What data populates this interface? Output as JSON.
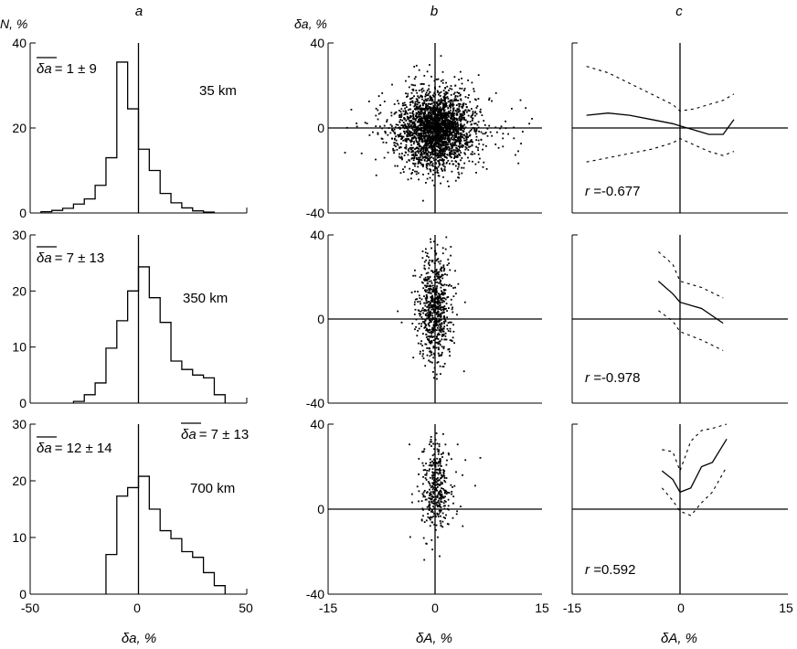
{
  "figure": {
    "panel_letters": [
      "a",
      "b",
      "c"
    ],
    "y_unit_a": "N, %",
    "y_unit_b": "δa, %",
    "x_label_a": "δa, %",
    "x_label_b": "δA, %",
    "x_label_c": "δA, %",
    "x_ticks_a": [
      "-50",
      "0",
      "50"
    ],
    "x_ticks_bc": [
      "-15",
      "0",
      "15"
    ]
  },
  "chart_data": [
    {
      "type": "bar",
      "panel": "a",
      "row": 1,
      "annotation": "35 km",
      "stat_symbol": "δa",
      "stat_value": "= 1 ± 9",
      "xlim": [
        -50,
        50
      ],
      "ylim": [
        0,
        40
      ],
      "yticks": [
        "40",
        "20",
        "0"
      ],
      "bin_width": 5,
      "bin_edges": [
        -45,
        -40,
        -35,
        -30,
        -25,
        -20,
        -15,
        -10,
        -5,
        0,
        5,
        10,
        15,
        20,
        25,
        30,
        35
      ],
      "values": [
        0.3,
        0.6,
        1.1,
        2.1,
        3.3,
        6.5,
        13,
        35.5,
        24.5,
        15,
        10,
        4.6,
        2.4,
        1.2,
        0.5,
        0.2
      ]
    },
    {
      "type": "scatter",
      "panel": "b",
      "row": 1,
      "xlim": [
        -15,
        15
      ],
      "ylim": [
        -40,
        40
      ],
      "yticks": [
        "40",
        "0",
        "-40"
      ],
      "cloud": {
        "n": 2600,
        "x_center": 0,
        "y_center": 0,
        "x_spread": 2.4,
        "y_spread": 9
      }
    },
    {
      "type": "line",
      "panel": "c",
      "row": 1,
      "xlim": [
        -15,
        15
      ],
      "ylim": [
        -40,
        40
      ],
      "r_label": "r =",
      "r_value": "-0.677",
      "series": [
        {
          "style": "solid",
          "x": [
            -13,
            -10,
            -7,
            -4,
            -1,
            0,
            2,
            4,
            6,
            7.5
          ],
          "y": [
            6,
            7,
            6,
            4,
            2,
            1,
            -1,
            -3,
            -3,
            4
          ]
        },
        {
          "style": "dashed",
          "x": [
            -13,
            -10,
            -7,
            -4,
            -1,
            0,
            2,
            4,
            6,
            7.5
          ],
          "y": [
            29,
            26,
            21,
            16,
            11,
            8,
            9,
            11,
            13,
            16
          ]
        },
        {
          "style": "dashed",
          "x": [
            -13,
            -10,
            -7,
            -4,
            -1,
            0,
            2,
            4,
            6,
            7.5
          ],
          "y": [
            -16,
            -14,
            -12,
            -10,
            -7,
            -5,
            -8,
            -11,
            -13,
            -11
          ]
        }
      ]
    },
    {
      "type": "bar",
      "panel": "a",
      "row": 2,
      "annotation": "350 km",
      "stat_symbol": "δa",
      "stat_value": "= 7 ± 13",
      "xlim": [
        -50,
        50
      ],
      "ylim": [
        0,
        30
      ],
      "yticks": [
        "30",
        "20",
        "10",
        "0"
      ],
      "bin_width": 5,
      "bin_edges": [
        -30,
        -25,
        -20,
        -15,
        -10,
        -5,
        0,
        5,
        10,
        15,
        20,
        25,
        30,
        35,
        40
      ],
      "values": [
        0.3,
        1.5,
        3.6,
        9.8,
        14.7,
        20,
        24.3,
        18.8,
        14.4,
        7.5,
        6,
        5,
        4.5,
        1.5
      ]
    },
    {
      "type": "scatter",
      "panel": "b",
      "row": 2,
      "xlim": [
        -15,
        15
      ],
      "ylim": [
        -40,
        40
      ],
      "yticks": [
        "40",
        "0",
        "-40"
      ],
      "cloud": {
        "n": 700,
        "x_center": -0.2,
        "y_center": 5,
        "x_spread": 1.0,
        "y_spread": 12
      }
    },
    {
      "type": "line",
      "panel": "c",
      "row": 2,
      "xlim": [
        -15,
        15
      ],
      "ylim": [
        -40,
        40
      ],
      "r_label": "r =",
      "r_value": "-0.978",
      "series": [
        {
          "style": "solid",
          "x": [
            -3,
            -1,
            0,
            3,
            6
          ],
          "y": [
            18,
            12,
            8,
            5,
            -2
          ]
        },
        {
          "style": "dashed",
          "x": [
            -3,
            -1,
            0,
            3,
            6
          ],
          "y": [
            32,
            26,
            18,
            15,
            10
          ]
        },
        {
          "style": "dashed",
          "x": [
            -3,
            -1,
            0,
            3,
            6
          ],
          "y": [
            4,
            -1,
            -6,
            -10,
            -15
          ]
        }
      ]
    },
    {
      "type": "bar",
      "panel": "a",
      "row": 3,
      "annotation": "700 km",
      "stat_symbol": "δa",
      "stat_value": "= 12 ± 14",
      "stat2_symbol": "δa",
      "stat2_value": "= 7 ± 13",
      "xlim": [
        -50,
        50
      ],
      "ylim": [
        0,
        30
      ],
      "yticks": [
        "30",
        "20",
        "10",
        "0"
      ],
      "bin_width": 5,
      "bin_edges": [
        -15,
        -10,
        -5,
        0,
        5,
        10,
        15,
        20,
        25,
        30,
        35,
        40
      ],
      "values": [
        7,
        17.3,
        18.8,
        20.8,
        15,
        11.2,
        9.8,
        7.5,
        6.5,
        3.8,
        1.5
      ]
    },
    {
      "type": "scatter",
      "panel": "b",
      "row": 3,
      "xlim": [
        -15,
        15
      ],
      "ylim": [
        -40,
        40
      ],
      "yticks": [
        "40",
        "0",
        "-40"
      ],
      "cloud": {
        "n": 380,
        "x_center": 0,
        "y_center": 10,
        "x_spread": 1.0,
        "y_spread": 12
      }
    },
    {
      "type": "line",
      "panel": "c",
      "row": 3,
      "xlim": [
        -15,
        15
      ],
      "ylim": [
        -40,
        40
      ],
      "r_label": "r =",
      "r_value": "0.592",
      "series": [
        {
          "style": "solid",
          "x": [
            -2.5,
            -1,
            0,
            1.5,
            3,
            4.5,
            6.5
          ],
          "y": [
            18,
            14,
            8,
            10,
            20,
            22,
            33
          ]
        },
        {
          "style": "dashed",
          "x": [
            -2.5,
            -1,
            0,
            1.5,
            3,
            4.5,
            6.5
          ],
          "y": [
            28,
            27,
            18,
            32,
            37,
            38,
            40
          ]
        },
        {
          "style": "dashed",
          "x": [
            -2.5,
            -1,
            0,
            1.5,
            3,
            4.5,
            6.5
          ],
          "y": [
            10,
            4,
            -1,
            -3,
            3,
            8,
            20
          ]
        }
      ]
    }
  ]
}
